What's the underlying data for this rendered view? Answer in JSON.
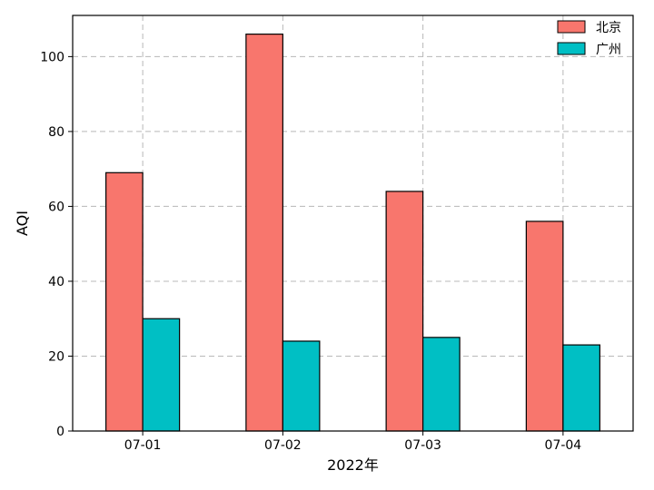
{
  "chart_data": {
    "type": "bar",
    "categories": [
      "07-01",
      "07-02",
      "07-03",
      "07-04"
    ],
    "series": [
      {
        "name": "北京",
        "values": [
          69,
          106,
          64,
          56
        ],
        "color": "#f8766d"
      },
      {
        "name": "广州",
        "values": [
          30,
          24,
          25,
          23
        ],
        "color": "#00bfc4"
      }
    ],
    "xlabel": "2022年",
    "ylabel": "AQI",
    "ylim": [
      0,
      111
    ],
    "yticks": [
      0,
      20,
      40,
      60,
      80,
      100
    ],
    "grid": true,
    "legend_position": "top-right"
  }
}
